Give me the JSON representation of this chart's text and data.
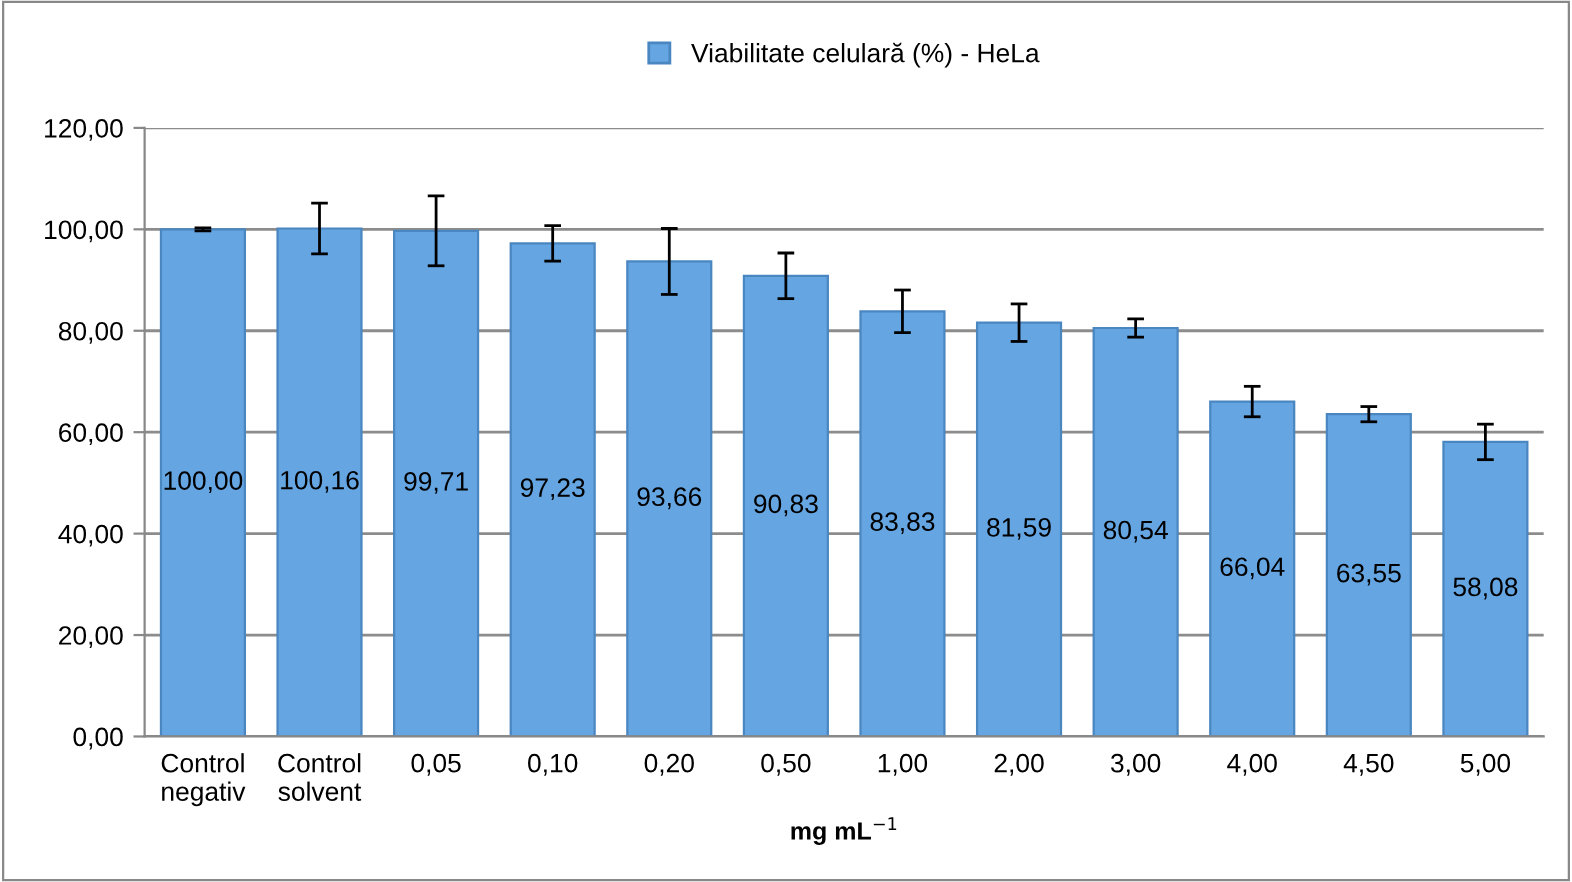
{
  "chart_data": {
    "type": "bar",
    "xlabel": "mg mL$^{−1}$",
    "legend": "top",
    "categories": [
      "Control\nnegativ",
      "Control\nsolvent",
      "0,05",
      "0,10",
      "0,20",
      "0,50",
      "1,00",
      "2,00",
      "3,00",
      "4,00",
      "4,50",
      "5,00"
    ],
    "series": [
      {
        "name": "Viabilitate celulară (%) - HeLa",
        "color": "#64a5e2",
        "values": [
          100.0,
          100.16,
          99.71,
          97.23,
          93.66,
          90.83,
          83.83,
          81.59,
          80.54,
          66.04,
          63.55,
          58.08
        ],
        "value_labels": [
          "100,00",
          "100,16",
          "99,71",
          "97,23",
          "93,66",
          "90,83",
          "83,83",
          "81,59",
          "80,54",
          "66,04",
          "63,55",
          "58,08"
        ],
        "errors": [
          0.3,
          5.0,
          6.9,
          3.5,
          6.5,
          4.5,
          4.2,
          3.7,
          1.8,
          3.0,
          1.5,
          3.5
        ]
      }
    ],
    "ylim": [
      0,
      120
    ],
    "yticks": [
      {
        "value": 0,
        "label": "0,00"
      },
      {
        "value": 20,
        "label": "20,00"
      },
      {
        "value": 40,
        "label": "40,00"
      },
      {
        "value": 60,
        "label": "60,00"
      },
      {
        "value": 80,
        "label": "80,00"
      },
      {
        "value": 100,
        "label": "100,00"
      },
      {
        "value": 120,
        "label": "120,00"
      }
    ],
    "grid": "y"
  }
}
